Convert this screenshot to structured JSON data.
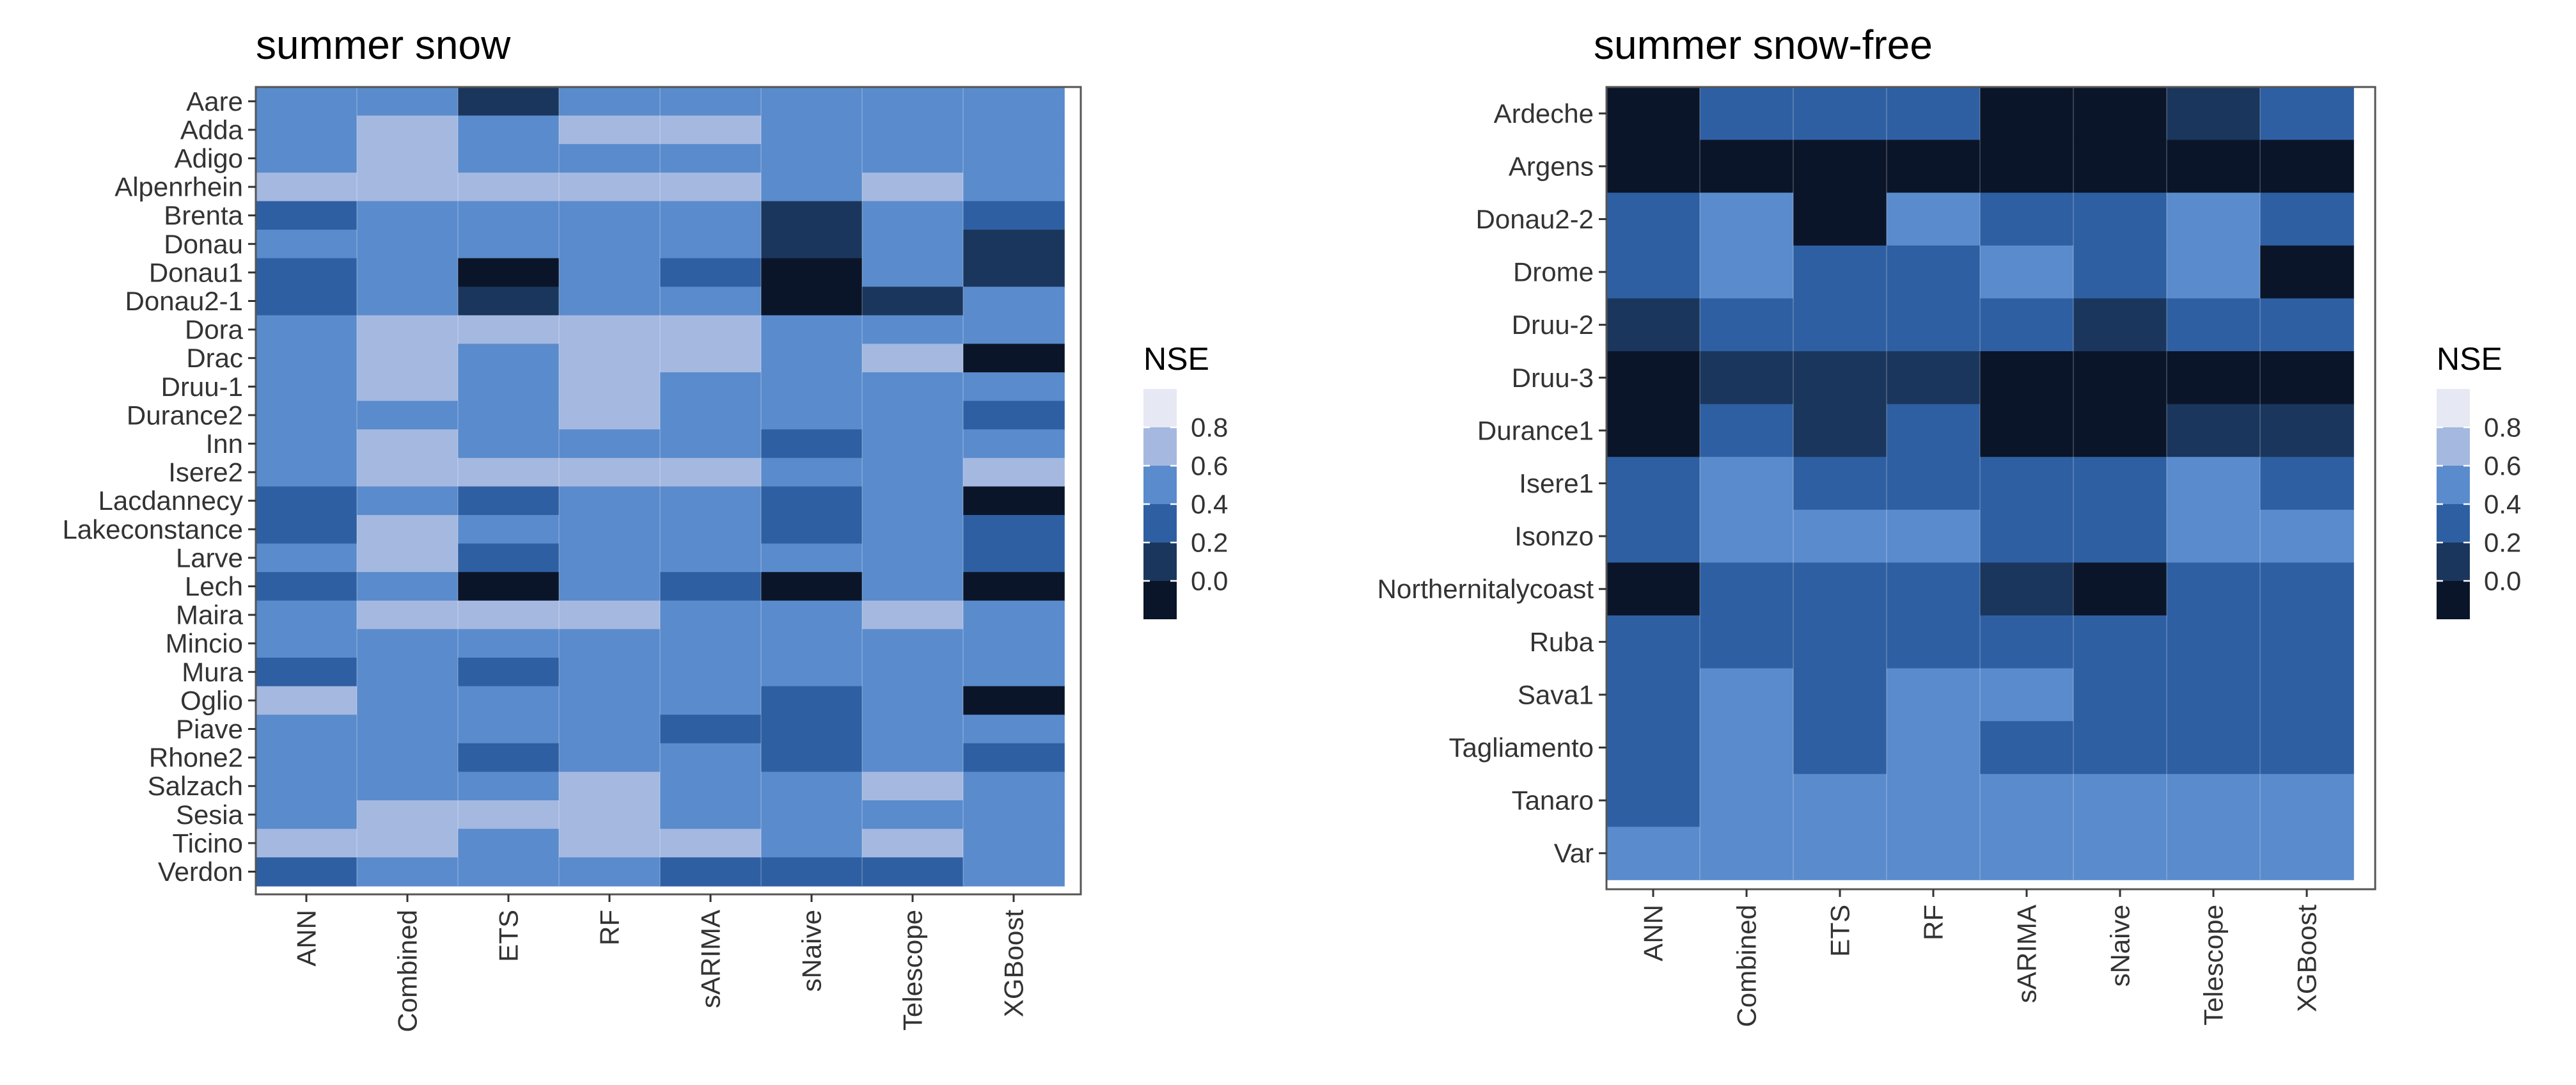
{
  "chart_data": [
    {
      "type": "heatmap",
      "title": "summer snow",
      "x": [
        "ANN",
        "Combined",
        "ETS",
        "RF",
        "sARIMA",
        "sNaive",
        "Telescope",
        "XGBoost"
      ],
      "y": [
        "Aare",
        "Adda",
        "Adigo",
        "Alpenrhein",
        "Brenta",
        "Donau",
        "Donau1",
        "Donau2-1",
        "Dora",
        "Drac",
        "Druu-1",
        "Durance2",
        "Inn",
        "Isere2",
        "Lacdannecy",
        "Lakeconstance",
        "Larve",
        "Lech",
        "Maira",
        "Mincio",
        "Mura",
        "Oglio",
        "Piave",
        "Rhone2",
        "Salzach",
        "Sesia",
        "Ticino",
        "Verdon"
      ],
      "values": [
        [
          0.7,
          0.7,
          0.3,
          0.7,
          0.7,
          0.7,
          0.7,
          0.7
        ],
        [
          0.7,
          0.9,
          0.7,
          0.9,
          0.9,
          0.7,
          0.7,
          0.7
        ],
        [
          0.7,
          0.9,
          0.7,
          0.7,
          0.7,
          0.7,
          0.7,
          0.7
        ],
        [
          0.9,
          0.9,
          0.9,
          0.9,
          0.9,
          0.7,
          0.9,
          0.7
        ],
        [
          0.5,
          0.7,
          0.7,
          0.7,
          0.7,
          0.3,
          0.7,
          0.5
        ],
        [
          0.7,
          0.7,
          0.7,
          0.7,
          0.7,
          0.3,
          0.7,
          0.3
        ],
        [
          0.5,
          0.7,
          0.1,
          0.7,
          0.5,
          0.1,
          0.7,
          0.3
        ],
        [
          0.5,
          0.7,
          0.3,
          0.7,
          0.7,
          0.1,
          0.3,
          0.7
        ],
        [
          0.7,
          0.9,
          0.9,
          0.9,
          0.9,
          0.7,
          0.7,
          0.7
        ],
        [
          0.7,
          0.9,
          0.7,
          0.9,
          0.9,
          0.7,
          0.9,
          0.1
        ],
        [
          0.7,
          0.9,
          0.7,
          0.9,
          0.7,
          0.7,
          0.7,
          0.7
        ],
        [
          0.7,
          0.7,
          0.7,
          0.9,
          0.7,
          0.7,
          0.7,
          0.4
        ],
        [
          0.7,
          0.9,
          0.7,
          0.7,
          0.7,
          0.5,
          0.7,
          0.7
        ],
        [
          0.7,
          0.9,
          0.9,
          0.9,
          0.9,
          0.7,
          0.7,
          0.9
        ],
        [
          0.5,
          0.7,
          0.5,
          0.7,
          0.7,
          0.4,
          0.7,
          0.1
        ],
        [
          0.5,
          0.9,
          0.7,
          0.7,
          0.7,
          0.5,
          0.7,
          0.4
        ],
        [
          0.7,
          0.9,
          0.5,
          0.7,
          0.7,
          0.7,
          0.7,
          0.5
        ],
        [
          0.5,
          0.7,
          0.1,
          0.7,
          0.5,
          0.1,
          0.7,
          0.1
        ],
        [
          0.7,
          0.9,
          0.9,
          0.9,
          0.7,
          0.7,
          0.9,
          0.7
        ],
        [
          0.7,
          0.7,
          0.7,
          0.7,
          0.7,
          0.7,
          0.7,
          0.7
        ],
        [
          0.5,
          0.7,
          0.4,
          0.7,
          0.7,
          0.7,
          0.7,
          0.7
        ],
        [
          0.9,
          0.7,
          0.7,
          0.7,
          0.7,
          0.5,
          0.7,
          0.1
        ],
        [
          0.7,
          0.7,
          0.7,
          0.7,
          0.5,
          0.5,
          0.7,
          0.7
        ],
        [
          0.7,
          0.7,
          0.4,
          0.7,
          0.7,
          0.5,
          0.7,
          0.5
        ],
        [
          0.7,
          0.7,
          0.7,
          0.9,
          0.7,
          0.7,
          0.9,
          0.7
        ],
        [
          0.7,
          0.9,
          0.9,
          0.9,
          0.7,
          0.7,
          0.7,
          0.7
        ],
        [
          0.9,
          0.9,
          0.7,
          0.9,
          0.9,
          0.7,
          0.9,
          0.7
        ],
        [
          0.5,
          0.7,
          0.7,
          0.7,
          0.5,
          0.5,
          0.5,
          0.7
        ]
      ],
      "legend": {
        "title": "NSE",
        "ticks": [
          "0.8",
          "0.6",
          "0.4",
          "0.2",
          "0.0"
        ],
        "position": "right"
      },
      "colors": {
        "0.0": "#0b1529",
        "0.2": "#1b365d",
        "0.4": "#2e5fa2",
        "0.6": "#5a8bcc",
        "0.8": "#a4b8e0",
        "1.0": "#e6e9f3"
      }
    },
    {
      "type": "heatmap",
      "title": "summer snow-free",
      "x": [
        "ANN",
        "Combined",
        "ETS",
        "RF",
        "sARIMA",
        "sNaive",
        "Telescope",
        "XGBoost"
      ],
      "y": [
        "Ardeche",
        "Argens",
        "Donau2-2",
        "Drome",
        "Druu-2",
        "Druu-3",
        "Durance1",
        "Isere1",
        "Isonzo",
        "Northernitalycoast",
        "Ruba",
        "Sava1",
        "Tagliamento",
        "Tanaro",
        "Var"
      ],
      "values": [
        [
          0.1,
          0.4,
          0.4,
          0.4,
          0.1,
          0.1,
          0.3,
          0.4
        ],
        [
          0.1,
          0.1,
          0.1,
          0.1,
          0.1,
          0.1,
          0.1,
          0.1
        ],
        [
          0.5,
          0.7,
          0.1,
          0.7,
          0.5,
          0.4,
          0.7,
          0.5
        ],
        [
          0.5,
          0.7,
          0.5,
          0.5,
          0.7,
          0.5,
          0.7,
          0.1
        ],
        [
          0.3,
          0.5,
          0.5,
          0.5,
          0.4,
          0.3,
          0.4,
          0.4
        ],
        [
          0.1,
          0.3,
          0.3,
          0.3,
          0.1,
          0.1,
          0.1,
          0.1
        ],
        [
          0.1,
          0.4,
          0.3,
          0.4,
          0.1,
          0.1,
          0.3,
          0.3
        ],
        [
          0.5,
          0.7,
          0.5,
          0.5,
          0.4,
          0.4,
          0.7,
          0.4
        ],
        [
          0.5,
          0.7,
          0.7,
          0.7,
          0.5,
          0.4,
          0.7,
          0.7
        ],
        [
          0.1,
          0.5,
          0.4,
          0.4,
          0.3,
          0.1,
          0.5,
          0.5
        ],
        [
          0.4,
          0.5,
          0.5,
          0.5,
          0.5,
          0.5,
          0.5,
          0.5
        ],
        [
          0.5,
          0.7,
          0.5,
          0.7,
          0.7,
          0.5,
          0.5,
          0.5
        ],
        [
          0.5,
          0.7,
          0.4,
          0.7,
          0.5,
          0.5,
          0.5,
          0.5
        ],
        [
          0.5,
          0.7,
          0.7,
          0.7,
          0.7,
          0.7,
          0.7,
          0.7
        ],
        [
          0.7,
          0.7,
          0.7,
          0.7,
          0.7,
          0.7,
          0.7,
          0.7
        ]
      ],
      "legend": {
        "title": "NSE",
        "ticks": [
          "0.8",
          "0.6",
          "0.4",
          "0.2",
          "0.0"
        ],
        "position": "right"
      },
      "colors": {
        "0.0": "#0b1529",
        "0.2": "#1b365d",
        "0.4": "#2e5fa2",
        "0.6": "#5a8bcc",
        "0.8": "#a4b8e0",
        "1.0": "#e6e9f3"
      }
    }
  ]
}
